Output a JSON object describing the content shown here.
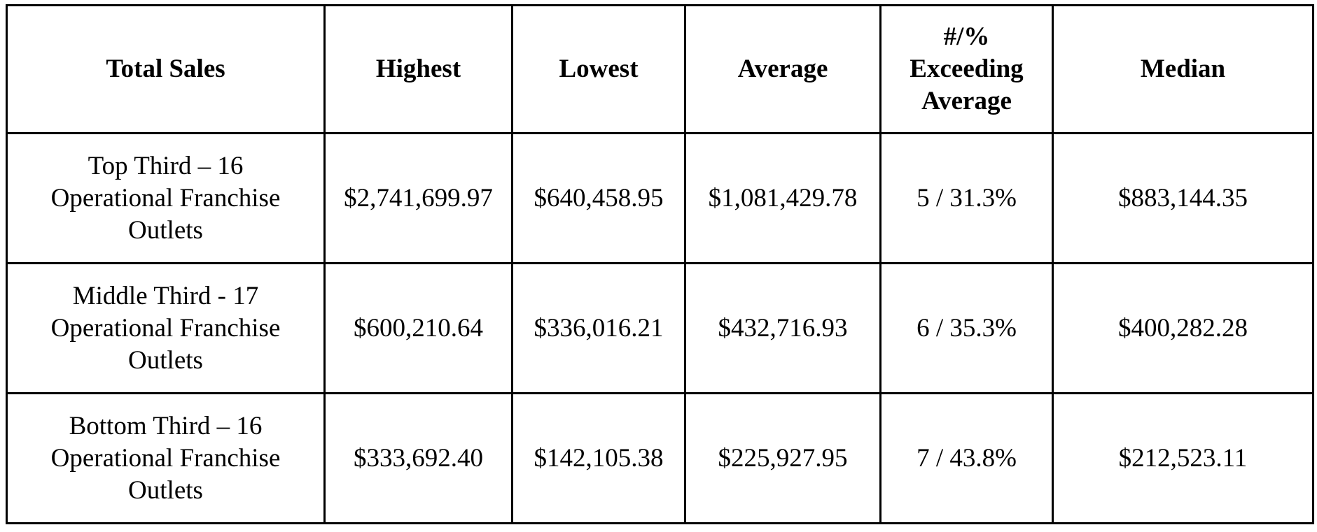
{
  "table": {
    "headers": [
      "Total Sales",
      "Highest",
      "Lowest",
      "Average",
      "#/% Exceeding Average",
      "Median"
    ],
    "rows": [
      {
        "label": "Top Third – 16 Operational Franchise Outlets",
        "highest": "$2,741,699.97",
        "lowest": "$640,458.95",
        "average": "$1,081,429.78",
        "exceeding": "5 / 31.3%",
        "median": "$883,144.35"
      },
      {
        "label": "Middle Third - 17 Operational Franchise Outlets",
        "highest": "$600,210.64",
        "lowest": "$336,016.21",
        "average": "$432,716.93",
        "exceeding": "6 / 35.3%",
        "median": "$400,282.28"
      },
      {
        "label": "Bottom Third – 16 Operational Franchise Outlets",
        "highest": "$333,692.40",
        "lowest": "$142,105.38",
        "average": "$225,927.95",
        "exceeding": "7 / 43.8%",
        "median": "$212,523.11"
      }
    ]
  }
}
